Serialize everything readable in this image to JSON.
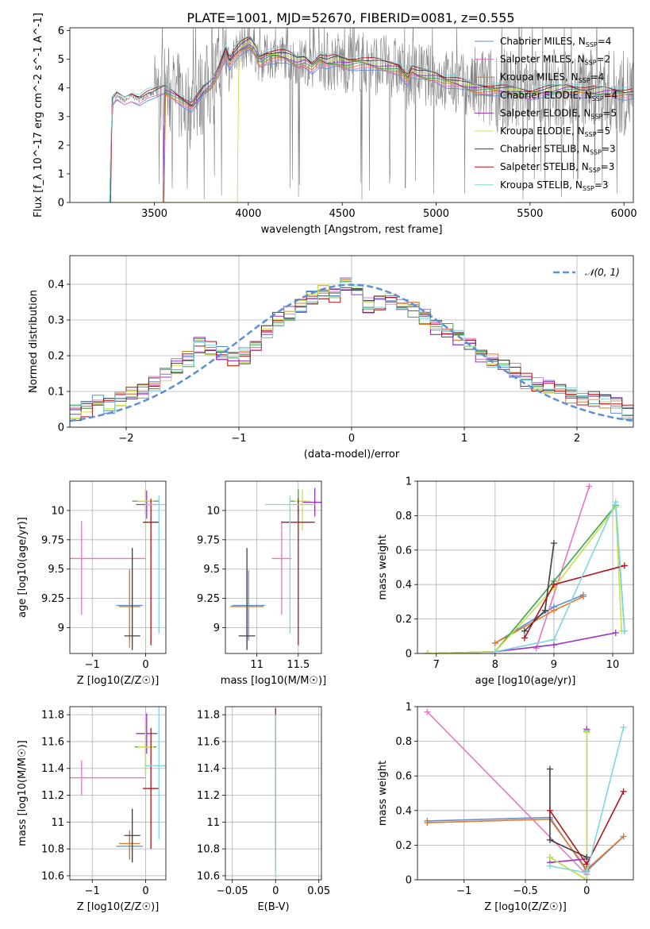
{
  "figure": {
    "title": "PLATE=1001, MJD=52670, FIBERID=0081, z=0.555"
  },
  "legend_series": [
    {
      "model": "Chabrier MILES",
      "nssp": "4",
      "color": "#5b8fd6"
    },
    {
      "model": "Salpeter MILES",
      "nssp": "2",
      "color": "#e377c2"
    },
    {
      "model": "Kroupa MILES",
      "nssp": "4",
      "color": "#e07b2a"
    },
    {
      "model": "Chabrier ELODIE",
      "nssp": "4",
      "color": "#3fa34d"
    },
    {
      "model": "Salpeter ELODIE",
      "nssp": "5",
      "color": "#9b30c8"
    },
    {
      "model": "Kroupa ELODIE",
      "nssp": "5",
      "color": "#c9e04b"
    },
    {
      "model": "Chabrier STELIB",
      "nssp": "3",
      "color": "#404040"
    },
    {
      "model": "Salpeter STELIB",
      "nssp": "3",
      "color": "#b0141e"
    },
    {
      "model": "Kroupa STELIB",
      "nssp": "3",
      "color": "#7fd6e0"
    }
  ],
  "chart_data": [
    {
      "id": "spectrum",
      "type": "line",
      "xlabel": "wavelength [Angstrom, rest frame]",
      "ylabel": "Flux [f_λ 10^-17 erg cm^-2 s^-1 A^-1]",
      "xlim": [
        3050,
        6050
      ],
      "ylim": [
        0,
        6.1
      ],
      "xticks": [
        3500,
        4000,
        4500,
        5000,
        5500,
        6000
      ],
      "yticks": [
        0,
        1,
        2,
        3,
        4,
        5,
        6
      ],
      "grid": false,
      "legend": "top-right",
      "data_color": "#808080",
      "model_continuum": {
        "x": [
          3050,
          3190,
          3260,
          3275,
          3300,
          3340,
          3380,
          3420,
          3460,
          3500,
          3560,
          3640,
          3700,
          3760,
          3800,
          3840,
          3880,
          3900,
          3930,
          3960,
          3990,
          4010,
          4040,
          4060,
          4100,
          4150,
          4200,
          4260,
          4300,
          4340,
          4380,
          4420,
          4470,
          4530,
          4600,
          4700,
          4800,
          4850,
          4870,
          4900,
          4950,
          5000,
          5050,
          5100,
          5150,
          5200,
          5300,
          5400,
          5500,
          5600,
          5700,
          5800,
          5900,
          6000
        ],
        "y": [
          0,
          0,
          0,
          3.5,
          3.7,
          3.55,
          3.7,
          3.6,
          3.75,
          3.8,
          3.95,
          3.6,
          3.35,
          3.9,
          4.1,
          4.6,
          5.3,
          4.9,
          5.2,
          5.4,
          5.5,
          5.55,
          5.3,
          4.95,
          5.1,
          5.15,
          5.1,
          4.9,
          4.95,
          4.75,
          5.0,
          4.9,
          4.95,
          4.85,
          4.9,
          4.8,
          4.7,
          4.3,
          4.6,
          4.5,
          4.45,
          4.4,
          4.25,
          4.2,
          4.1,
          4.0,
          3.95,
          3.9,
          3.8,
          3.9,
          4.0,
          3.85,
          3.9,
          3.8
        ]
      },
      "model_start_x": [
        3270,
        3270,
        3560,
        3555,
        3555,
        3950,
        3270,
        3275,
        3270
      ]
    },
    {
      "id": "residuals",
      "type": "bar",
      "xlabel": "(data-model)/error",
      "ylabel": "Normed distribution",
      "xlim": [
        -2.5,
        2.5
      ],
      "ylim": [
        0,
        0.48
      ],
      "xticks": [
        -2,
        -1,
        0,
        1,
        2
      ],
      "yticks": [
        0.0,
        0.1,
        0.2,
        0.3,
        0.4
      ],
      "grid": true,
      "legend": "top-right",
      "legend_label": "𝒩(0, 1)",
      "gauss_color": "#5b8fd6",
      "bins": [
        -2.5,
        2.5,
        50
      ],
      "base_hist": [
        0.04,
        0.05,
        0.07,
        0.06,
        0.08,
        0.09,
        0.1,
        0.12,
        0.15,
        0.17,
        0.19,
        0.23,
        0.22,
        0.21,
        0.19,
        0.2,
        0.23,
        0.27,
        0.3,
        0.32,
        0.34,
        0.36,
        0.38,
        0.37,
        0.4,
        0.38,
        0.34,
        0.35,
        0.36,
        0.34,
        0.33,
        0.31,
        0.28,
        0.27,
        0.25,
        0.24,
        0.2,
        0.19,
        0.17,
        0.16,
        0.13,
        0.12,
        0.11,
        0.1,
        0.09,
        0.08,
        0.08,
        0.07,
        0.06,
        0.04
      ]
    },
    {
      "id": "age-vs-Z",
      "type": "scatter",
      "xlabel": "Z [log10(Z/Z☉)]",
      "ylabel": "age [log10(age/yr)]",
      "xlim": [
        -1.42,
        0.38
      ],
      "ylim": [
        8.78,
        10.25
      ],
      "xticks": [
        -1,
        0
      ],
      "yticks": [
        9.0,
        9.25,
        9.5,
        9.75,
        10.0
      ],
      "grid": true,
      "points": [
        {
          "x": -0.3,
          "xerr": 0.25,
          "y": 9.19,
          "yerr": [
            0.3,
            0.3
          ]
        },
        {
          "x": -1.2,
          "xerr": 1.2,
          "y": 9.59,
          "yerr": [
            0.48,
            0.32
          ]
        },
        {
          "x": -0.3,
          "xerr": 0.2,
          "y": 9.18,
          "yerr": [
            0.35,
            0.32
          ]
        },
        {
          "x": 0.0,
          "xerr": 0.25,
          "y": 10.08,
          "yerr": [
            0.12,
            0.1
          ]
        },
        {
          "x": 0.02,
          "xerr": 0.2,
          "y": 10.05,
          "yerr": [
            0.12,
            0.12
          ]
        },
        {
          "x": 0.0,
          "xerr": 0.15,
          "y": 10.08,
          "yerr": [
            0.25,
            0.1
          ]
        },
        {
          "x": -0.25,
          "xerr": 0.15,
          "y": 8.93,
          "yerr": [
            0.12,
            0.75
          ]
        },
        {
          "x": 0.1,
          "xerr": 0.15,
          "y": 9.9,
          "yerr": [
            1.05,
            0.2
          ]
        },
        {
          "x": 0.25,
          "xerr": 0.25,
          "y": 10.05,
          "yerr": [
            1.1,
            0.08
          ]
        }
      ]
    },
    {
      "id": "age-vs-mass",
      "type": "scatter",
      "xlabel": "mass [log10(M/M☉)]",
      "ylabel": "",
      "xlim": [
        10.62,
        11.78
      ],
      "ylim": [
        8.78,
        10.25
      ],
      "xticks": [
        11.0,
        11.5
      ],
      "yticks": [
        9.0,
        9.25,
        9.5,
        9.75,
        10.0
      ],
      "grid": true,
      "points": [
        {
          "x": 10.9,
          "xerr": 0.2,
          "y": 9.19,
          "yerr": [
            0.3,
            0.3
          ]
        },
        {
          "x": 11.3,
          "xerr": 0.12,
          "y": 9.59,
          "yerr": [
            0.48,
            0.32
          ]
        },
        {
          "x": 10.88,
          "xerr": 0.2,
          "y": 9.18,
          "yerr": [
            0.35,
            0.32
          ]
        },
        {
          "x": 11.5,
          "xerr": 0.1,
          "y": 10.08,
          "yerr": [
            0.12,
            0.1
          ]
        },
        {
          "x": 11.7,
          "xerr": 0.15,
          "y": 10.07,
          "yerr": [
            0.12,
            0.12
          ]
        },
        {
          "x": 11.55,
          "xerr": 0.1,
          "y": 10.08,
          "yerr": [
            0.25,
            0.1
          ]
        },
        {
          "x": 10.88,
          "xerr": 0.1,
          "y": 8.93,
          "yerr": [
            0.12,
            0.75
          ]
        },
        {
          "x": 11.5,
          "xerr": 0.2,
          "y": 9.9,
          "yerr": [
            1.05,
            0.2
          ]
        },
        {
          "x": 11.4,
          "xerr": 0.3,
          "y": 10.05,
          "yerr": [
            1.1,
            0.08
          ]
        }
      ]
    },
    {
      "id": "weight-vs-age",
      "type": "line",
      "xlabel": "age [log10(age/yr)]",
      "ylabel": "mass weight",
      "xlim": [
        6.68,
        10.35
      ],
      "ylim": [
        0,
        1.0
      ],
      "xticks": [
        7,
        8,
        9,
        10
      ],
      "yticks": [
        0.0,
        0.2,
        0.4,
        0.6,
        0.8,
        1.0
      ],
      "grid": true,
      "series": [
        {
          "x": [
            8.0,
            9.0,
            9.5
          ],
          "y": [
            0.06,
            0.27,
            0.34
          ]
        },
        {
          "x": [
            8.7,
            9.6
          ],
          "y": [
            0.03,
            0.97
          ]
        },
        {
          "x": [
            8.0,
            9.0,
            9.5
          ],
          "y": [
            0.06,
            0.25,
            0.33
          ]
        },
        {
          "x": [
            6.85,
            8.0,
            9.0,
            10.05,
            10.2
          ],
          "y": [
            0.0,
            0.01,
            0.42,
            0.86,
            0.13
          ]
        },
        {
          "x": [
            6.85,
            8.0,
            9.0,
            10.05
          ],
          "y": [
            0.0,
            0.01,
            0.05,
            0.12
          ]
        },
        {
          "x": [
            6.85,
            8.0,
            9.0,
            10.05,
            10.15
          ],
          "y": [
            0.0,
            0.01,
            0.38,
            0.85,
            0.13
          ]
        },
        {
          "x": [
            8.5,
            8.85,
            9.0
          ],
          "y": [
            0.13,
            0.25,
            0.64
          ]
        },
        {
          "x": [
            8.5,
            9.0,
            10.2
          ],
          "y": [
            0.09,
            0.4,
            0.51
          ]
        },
        {
          "x": [
            8.0,
            9.0,
            10.05,
            10.2
          ],
          "y": [
            0.01,
            0.08,
            0.88,
            0.13
          ]
        }
      ]
    },
    {
      "id": "mass-vs-Z",
      "type": "scatter",
      "xlabel": "Z [log10(Z/Z☉)]",
      "ylabel": "mass [log10(M/M☉)]",
      "xlim": [
        -1.42,
        0.38
      ],
      "ylim": [
        10.57,
        11.86
      ],
      "xticks": [
        -1,
        0
      ],
      "yticks": [
        10.6,
        10.8,
        11.0,
        11.2,
        11.4,
        11.6,
        11.8
      ],
      "grid": true,
      "points": [
        {
          "x": -0.3,
          "xerr": 0.25,
          "y": 10.82,
          "yerr": 0.1
        },
        {
          "x": -1.2,
          "xerr": 1.2,
          "y": 11.33,
          "yerr": 0.13
        },
        {
          "x": -0.3,
          "xerr": 0.2,
          "y": 10.84,
          "yerr": 0.1
        },
        {
          "x": 0.0,
          "xerr": 0.2,
          "y": 11.56,
          "yerr": 0.2
        },
        {
          "x": 0.02,
          "xerr": 0.2,
          "y": 11.66,
          "yerr": 0.15
        },
        {
          "x": 0.0,
          "xerr": 0.15,
          "y": 11.56,
          "yerr": 0.2
        },
        {
          "x": -0.25,
          "xerr": 0.15,
          "y": 10.9,
          "yerr": 0.2
        },
        {
          "x": 0.1,
          "xerr": 0.15,
          "y": 11.25,
          "yerr": 0.45
        },
        {
          "x": 0.25,
          "xerr": 0.25,
          "y": 11.42,
          "yerr": 0.55
        }
      ]
    },
    {
      "id": "mass-vs-ebv",
      "type": "scatter",
      "xlabel": "E(B-V)",
      "ylabel": "",
      "xlim": [
        -0.058,
        0.053
      ],
      "ylim": [
        10.57,
        11.86
      ],
      "xticks": [
        -0.05,
        0.0,
        0.05
      ],
      "yticks": [
        10.6,
        10.8,
        11.0,
        11.2,
        11.4,
        11.6,
        11.8
      ],
      "grid": true,
      "points": [
        {
          "x": 0.0,
          "xerr": 0.0,
          "y": 11.2,
          "yerr": 0.55
        },
        {
          "x": 0.0,
          "xerr": 0.0,
          "y": 11.25,
          "yerr": 0.55
        },
        {
          "x": 0.0,
          "xerr": 0.0,
          "y": 11.0,
          "yerr": 0.35
        },
        {
          "x": 0.0,
          "xerr": 0.0,
          "y": 11.3,
          "yerr": 0.5
        },
        {
          "x": 0.0,
          "xerr": 0.0,
          "y": 11.3,
          "yerr": 0.5
        },
        {
          "x": 0.0,
          "xerr": 0.0,
          "y": 11.2,
          "yerr": 0.5
        },
        {
          "x": 0.0,
          "xerr": 0.0,
          "y": 11.2,
          "yerr": 0.45
        },
        {
          "x": 0.0,
          "xerr": 0.0,
          "y": 11.3,
          "yerr": 0.55
        },
        {
          "x": 0.0,
          "xerr": 0.0,
          "y": 11.2,
          "yerr": 0.6
        }
      ]
    },
    {
      "id": "weight-vs-Z",
      "type": "line",
      "xlabel": "Z [log10(Z/Z☉)]",
      "ylabel": "mass weight",
      "xlim": [
        -1.38,
        0.38
      ],
      "ylim": [
        0,
        1.0
      ],
      "xticks": [
        -1.0,
        -0.5,
        0.0
      ],
      "yticks": [
        0.0,
        0.2,
        0.4,
        0.6,
        0.8,
        1.0
      ],
      "grid": true,
      "series": [
        {
          "x": [
            -1.3,
            -0.3,
            0.0,
            0.3
          ],
          "y": [
            0.34,
            0.36,
            0.05,
            0.25
          ]
        },
        {
          "x": [
            -1.3,
            0.0
          ],
          "y": [
            0.97,
            0.03
          ]
        },
        {
          "x": [
            -1.3,
            -0.3,
            0.0,
            0.3
          ],
          "y": [
            0.33,
            0.35,
            0.06,
            0.25
          ]
        },
        {
          "x": [
            -0.3,
            0.0,
            0.0
          ],
          "y": [
            0.13,
            0.0,
            0.86
          ]
        },
        {
          "x": [
            -0.3,
            0.0,
            0.0
          ],
          "y": [
            0.1,
            0.12,
            0.87
          ]
        },
        {
          "x": [
            -0.3,
            0.0,
            0.0
          ],
          "y": [
            0.13,
            0.0,
            0.85
          ]
        },
        {
          "x": [
            -0.3,
            -0.3,
            0.0
          ],
          "y": [
            0.64,
            0.23,
            0.13
          ]
        },
        {
          "x": [
            -0.3,
            0.0,
            0.3
          ],
          "y": [
            0.4,
            0.09,
            0.51
          ]
        },
        {
          "x": [
            -0.3,
            0.0,
            0.3
          ],
          "y": [
            0.08,
            0.04,
            0.88
          ]
        }
      ]
    }
  ]
}
